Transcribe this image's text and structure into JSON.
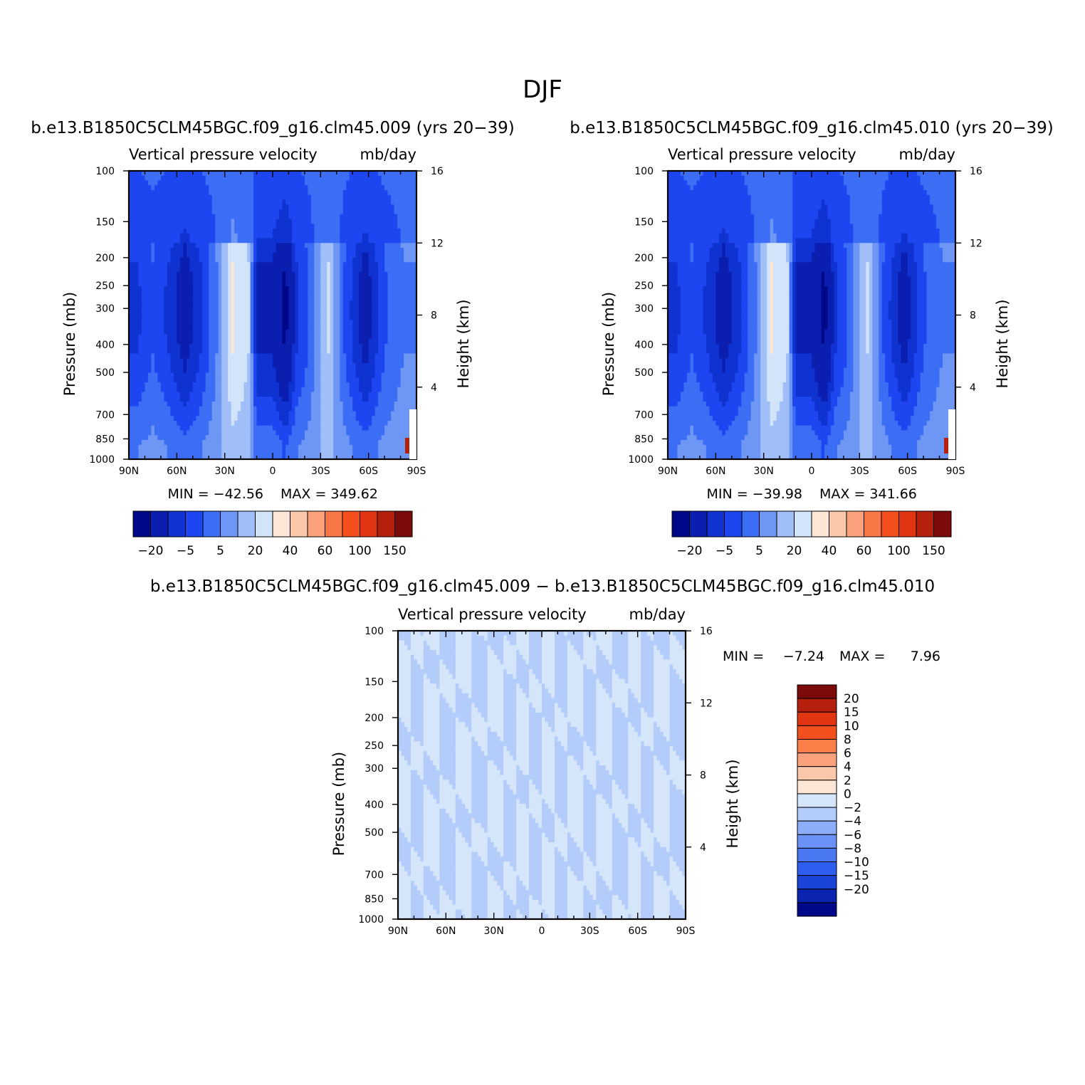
{
  "title": "DJF",
  "colors": {
    "main_scale": [
      "#00088a",
      "#0a1eb0",
      "#0f32d0",
      "#1e46f0",
      "#3c6ef5",
      "#6e96f5",
      "#a0bef8",
      "#d2e4fa",
      "#fde6d6",
      "#fcc8aa",
      "#fba27c",
      "#f87646",
      "#f3501e",
      "#e13412",
      "#b4200c",
      "#7d0a0a"
    ],
    "diff_scale": [
      "#7d0a0a",
      "#b4200c",
      "#e13412",
      "#f3501e",
      "#fb7f48",
      "#fba27c",
      "#fcc8aa",
      "#fde6d6",
      "#d6e6fa",
      "#b4ccfa",
      "#8caef8",
      "#6a92f6",
      "#4a78f2",
      "#2e5ef0",
      "#1a44d8",
      "#0a24b0",
      "#00088a"
    ]
  },
  "panels": [
    {
      "id": "run009",
      "run_title": "b.e13.B1850C5CLM45BGC.f09_g16.clm45.009 (yrs 20-39)",
      "var_left": "Vertical pressure velocity",
      "var_right": "mb/day",
      "min_text": "MIN = -42.56",
      "max_text": "MAX = 349.62"
    },
    {
      "id": "run010",
      "run_title": "b.e13.B1850C5CLM45BGC.f09_g16.clm45.010 (yrs 20-39)",
      "var_left": "Vertical pressure velocity",
      "var_right": "mb/day",
      "min_text": "MIN = -39.98",
      "max_text": "MAX = 341.66"
    },
    {
      "id": "diff",
      "run_title": "b.e13.B1850C5CLM45BGC.f09_g16.clm45.009 - b.e13.B1850C5CLM45BGC.f09_g16.clm45.010",
      "var_left": "Vertical pressure velocity",
      "var_right": "mb/day",
      "min_text": "MIN =",
      "min_value": "-7.24",
      "max_text": "MAX =",
      "max_value": "7.96"
    }
  ],
  "axes": {
    "x_ticks": [
      "90N",
      "60N",
      "30N",
      "0",
      "30S",
      "60S",
      "90S"
    ],
    "y_ticks": [
      "100",
      "150",
      "200",
      "250",
      "300",
      "400",
      "500",
      "700",
      "850",
      "1000"
    ],
    "y_label": "Pressure (mb)",
    "y2_ticks": [
      "16",
      "12",
      "8",
      "4"
    ],
    "y2_label": "Height (km)"
  },
  "colorbars": {
    "main_labels": [
      "-20",
      "-5",
      "5",
      "20",
      "40",
      "60",
      "100",
      "150"
    ],
    "diff_labels": [
      "20",
      "15",
      "10",
      "8",
      "6",
      "4",
      "2",
      "0",
      "-2",
      "-4",
      "-6",
      "-8",
      "-10",
      "-15",
      "-20"
    ]
  },
  "chart_data": [
    {
      "type": "heatmap",
      "title": "b.e13.B1850C5CLM45BGC.f09_g16.clm45.009 (yrs 20-39)",
      "variable": "Vertical pressure velocity",
      "units": "mb/day",
      "xlabel": "",
      "ylabel": "Pressure (mb)",
      "y2label": "Height (km)",
      "x_ticks": [
        "90N",
        "60N",
        "30N",
        "0",
        "30S",
        "60S",
        "90S"
      ],
      "xlim": [
        90,
        -90
      ],
      "ylim": [
        1000,
        100
      ],
      "y_scale": "log",
      "min": -42.56,
      "max": 349.62,
      "contour_levels": [
        -30,
        -20,
        -15,
        -10,
        -5,
        0,
        5,
        10,
        20,
        30,
        40,
        50,
        60,
        80,
        100,
        150
      ],
      "columns": [
        {
          "lat": 85,
          "value": -15
        },
        {
          "lat": 75,
          "value": -10
        },
        {
          "lat": 65,
          "value": -15
        },
        {
          "lat": 55,
          "value": -22
        },
        {
          "lat": 45,
          "value": -15
        },
        {
          "lat": 35,
          "value": -5
        },
        {
          "lat": 25,
          "value": 10
        },
        {
          "lat": 15,
          "value": 5
        },
        {
          "lat": 10,
          "value": -20
        },
        {
          "lat": 0,
          "value": -20
        },
        {
          "lat": -8,
          "value": -30
        },
        {
          "lat": -15,
          "value": -15
        },
        {
          "lat": -22,
          "value": -10
        },
        {
          "lat": -35,
          "value": 5
        },
        {
          "lat": -45,
          "value": -10
        },
        {
          "lat": -58,
          "value": -22
        },
        {
          "lat": -70,
          "value": -10
        },
        {
          "lat": -82,
          "value": -5
        }
      ],
      "notes_visible": "Surface maximum near 90S"
    },
    {
      "type": "heatmap",
      "title": "b.e13.B1850C5CLM45BGC.f09_g16.clm45.010 (yrs 20-39)",
      "variable": "Vertical pressure velocity",
      "units": "mb/day",
      "xlabel": "",
      "ylabel": "Pressure (mb)",
      "y2label": "Height (km)",
      "x_ticks": [
        "90N",
        "60N",
        "30N",
        "0",
        "30S",
        "60S",
        "90S"
      ],
      "xlim": [
        90,
        -90
      ],
      "ylim": [
        1000,
        100
      ],
      "y_scale": "log",
      "min": -39.98,
      "max": 341.66,
      "contour_levels": [
        -30,
        -20,
        -15,
        -10,
        -5,
        0,
        5,
        10,
        20,
        30,
        40,
        50,
        60,
        80,
        100,
        150
      ],
      "columns": [
        {
          "lat": 85,
          "value": -15
        },
        {
          "lat": 75,
          "value": -10
        },
        {
          "lat": 65,
          "value": -15
        },
        {
          "lat": 55,
          "value": -22
        },
        {
          "lat": 45,
          "value": -15
        },
        {
          "lat": 35,
          "value": -5
        },
        {
          "lat": 25,
          "value": 10
        },
        {
          "lat": 15,
          "value": 5
        },
        {
          "lat": 10,
          "value": -20
        },
        {
          "lat": 0,
          "value": -20
        },
        {
          "lat": -8,
          "value": -30
        },
        {
          "lat": -15,
          "value": -15
        },
        {
          "lat": -22,
          "value": -10
        },
        {
          "lat": -35,
          "value": 5
        },
        {
          "lat": -45,
          "value": -10
        },
        {
          "lat": -58,
          "value": -22
        },
        {
          "lat": -70,
          "value": -10
        },
        {
          "lat": -82,
          "value": -5
        }
      ]
    },
    {
      "type": "heatmap",
      "title": "b.e13.B1850C5CLM45BGC.f09_g16.clm45.009 - b.e13.B1850C5CLM45BGC.f09_g16.clm45.010",
      "variable": "Vertical pressure velocity",
      "units": "mb/day",
      "xlabel": "",
      "ylabel": "Pressure (mb)",
      "y2label": "Height (km)",
      "x_ticks": [
        "90N",
        "60N",
        "30N",
        "0",
        "30S",
        "60S",
        "90S"
      ],
      "xlim": [
        90,
        -90
      ],
      "ylim": [
        1000,
        100
      ],
      "y_scale": "log",
      "min": -7.24,
      "max": 7.96,
      "contour_levels": [
        -20,
        -15,
        -10,
        -8,
        -6,
        -4,
        -2,
        0,
        2,
        4,
        6,
        8,
        10,
        15,
        20
      ],
      "columns": [
        {
          "lat": 86,
          "value": 1
        },
        {
          "lat": 78,
          "value": -1
        },
        {
          "lat": 68,
          "value": 1
        },
        {
          "lat": 60,
          "value": -1
        },
        {
          "lat": 48,
          "value": 1
        },
        {
          "lat": 40,
          "value": -1
        },
        {
          "lat": 28,
          "value": 1
        },
        {
          "lat": 20,
          "value": -1
        },
        {
          "lat": 12,
          "value": 1
        },
        {
          "lat": 4,
          "value": -1
        },
        {
          "lat": -4,
          "value": 1
        },
        {
          "lat": -12,
          "value": -1
        },
        {
          "lat": -22,
          "value": 1
        },
        {
          "lat": -30,
          "value": -1
        },
        {
          "lat": -40,
          "value": 1
        },
        {
          "lat": -50,
          "value": -1
        },
        {
          "lat": -58,
          "value": 1
        },
        {
          "lat": -66,
          "value": -1
        },
        {
          "lat": -75,
          "value": 1
        },
        {
          "lat": -86,
          "value": -1
        }
      ]
    }
  ]
}
